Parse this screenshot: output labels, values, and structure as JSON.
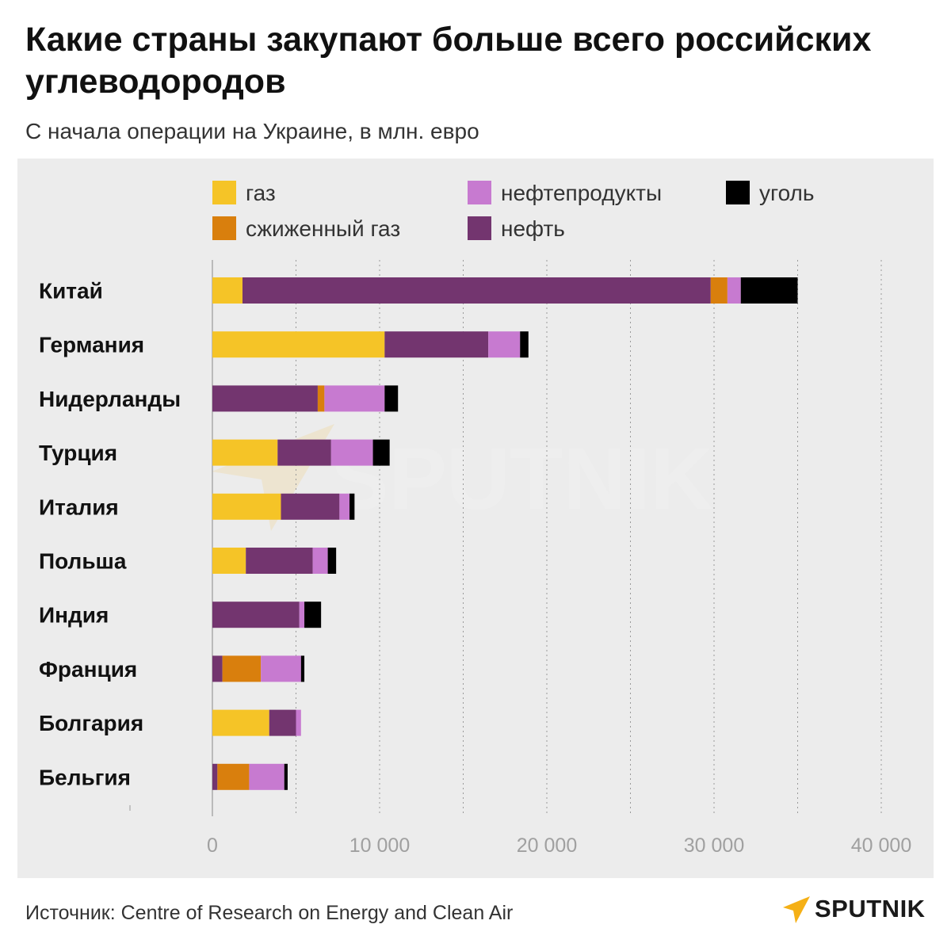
{
  "title": "Какие страны закупают больше всего российских углеводородов",
  "subtitle": "С начала операции на Украине, в млн. евро",
  "source": "Источник: Centre of Research on Energy and Clean Air",
  "brand": "SPUTNIK",
  "watermark": "SPUTNIK",
  "colors": {
    "background": "#ececec",
    "gas": "#f5c427",
    "lng": "#d97f0d",
    "oil": "#73356f",
    "oil_products": "#c77ad0",
    "coal": "#000000",
    "brand": "#f5b016"
  },
  "chart_data": {
    "type": "bar",
    "orientation": "horizontal",
    "stacked": true,
    "title": "Какие страны закупают больше всего российских углеводородов",
    "subtitle": "С начала операции на Украине, в млн. евро",
    "xlabel": "",
    "ylabel": "",
    "xlim": [
      0,
      40000
    ],
    "xticks": [
      0,
      10000,
      20000,
      30000,
      40000
    ],
    "xtick_labels": [
      "0",
      "10 000",
      "20 000",
      "30 000",
      "40 000"
    ],
    "grid": "vertical dotted",
    "legend_position": "top",
    "legend": [
      {
        "key": "gas",
        "label": "газ",
        "color": "#f5c427"
      },
      {
        "key": "lng",
        "label": "сжиженный газ",
        "color": "#d97f0d"
      },
      {
        "key": "oil_products",
        "label": "нефтепродукты",
        "color": "#c77ad0"
      },
      {
        "key": "oil",
        "label": "нефть",
        "color": "#73356f"
      },
      {
        "key": "coal",
        "label": "уголь",
        "color": "#000000"
      }
    ],
    "categories": [
      "Китай",
      "Германия",
      "Нидерланды",
      "Турция",
      "Италия",
      "Польша",
      "Индия",
      "Франция",
      "Болгария",
      "Бельгия"
    ],
    "series": [
      {
        "name": "газ",
        "key": "gas",
        "color": "#f5c427",
        "values": [
          1800,
          10300,
          0,
          3900,
          4100,
          2000,
          0,
          0,
          3400,
          0
        ]
      },
      {
        "name": "нефть",
        "key": "oil",
        "color": "#73356f",
        "values": [
          28000,
          6200,
          6300,
          3200,
          3500,
          4000,
          5200,
          600,
          1600,
          300
        ]
      },
      {
        "name": "сжиженный газ",
        "key": "lng",
        "color": "#d97f0d",
        "values": [
          1000,
          0,
          400,
          0,
          0,
          0,
          0,
          2300,
          0,
          1900
        ]
      },
      {
        "name": "нефтепродукты",
        "key": "oil_products",
        "color": "#c77ad0",
        "values": [
          800,
          1900,
          3600,
          2500,
          600,
          900,
          300,
          2400,
          300,
          2100
        ]
      },
      {
        "name": "уголь",
        "key": "coal",
        "color": "#000000",
        "values": [
          3400,
          500,
          800,
          1000,
          300,
          500,
          1000,
          200,
          0,
          200
        ]
      }
    ]
  }
}
